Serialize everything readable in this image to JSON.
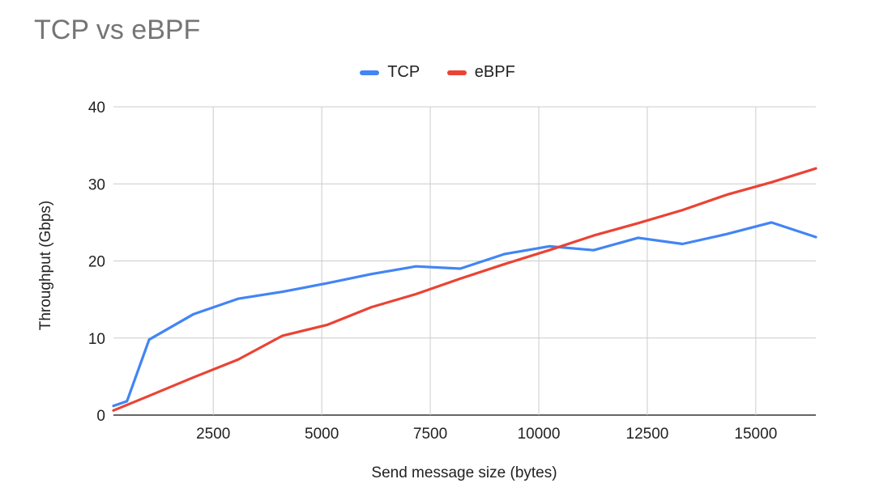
{
  "chart_data": {
    "type": "line",
    "title": "TCP vs eBPF",
    "xlabel": "Send message size (bytes)",
    "ylabel": "Throughput (Gbps)",
    "xlim": [
      200,
      16384
    ],
    "ylim": [
      0,
      40
    ],
    "xticks": [
      2500,
      5000,
      7500,
      10000,
      12500,
      15000
    ],
    "yticks": [
      0,
      10,
      20,
      30,
      40
    ],
    "grid": true,
    "legend_position": "top-center",
    "series": [
      {
        "name": "TCP",
        "color": "#4285f4",
        "points": [
          [
            200,
            1.2
          ],
          [
            512,
            1.8
          ],
          [
            1024,
            9.8
          ],
          [
            2048,
            13.1
          ],
          [
            3072,
            15.1
          ],
          [
            4096,
            16.0
          ],
          [
            5120,
            17.1
          ],
          [
            6144,
            18.3
          ],
          [
            7168,
            19.3
          ],
          [
            8192,
            19.0
          ],
          [
            9216,
            20.9
          ],
          [
            10240,
            21.9
          ],
          [
            11264,
            21.4
          ],
          [
            12288,
            23.0
          ],
          [
            13312,
            22.2
          ],
          [
            14336,
            23.5
          ],
          [
            15360,
            25.0
          ],
          [
            16384,
            23.1
          ]
        ]
      },
      {
        "name": "eBPF",
        "color": "#ea4335",
        "points": [
          [
            200,
            0.6
          ],
          [
            1024,
            2.5
          ],
          [
            2048,
            4.9
          ],
          [
            3072,
            7.2
          ],
          [
            4096,
            10.3
          ],
          [
            5120,
            11.7
          ],
          [
            6144,
            14.0
          ],
          [
            7168,
            15.7
          ],
          [
            8192,
            17.7
          ],
          [
            9216,
            19.6
          ],
          [
            10240,
            21.4
          ],
          [
            11264,
            23.3
          ],
          [
            12288,
            24.9
          ],
          [
            13312,
            26.6
          ],
          [
            14336,
            28.6
          ],
          [
            15360,
            30.2
          ],
          [
            16384,
            32.0
          ]
        ]
      }
    ]
  }
}
